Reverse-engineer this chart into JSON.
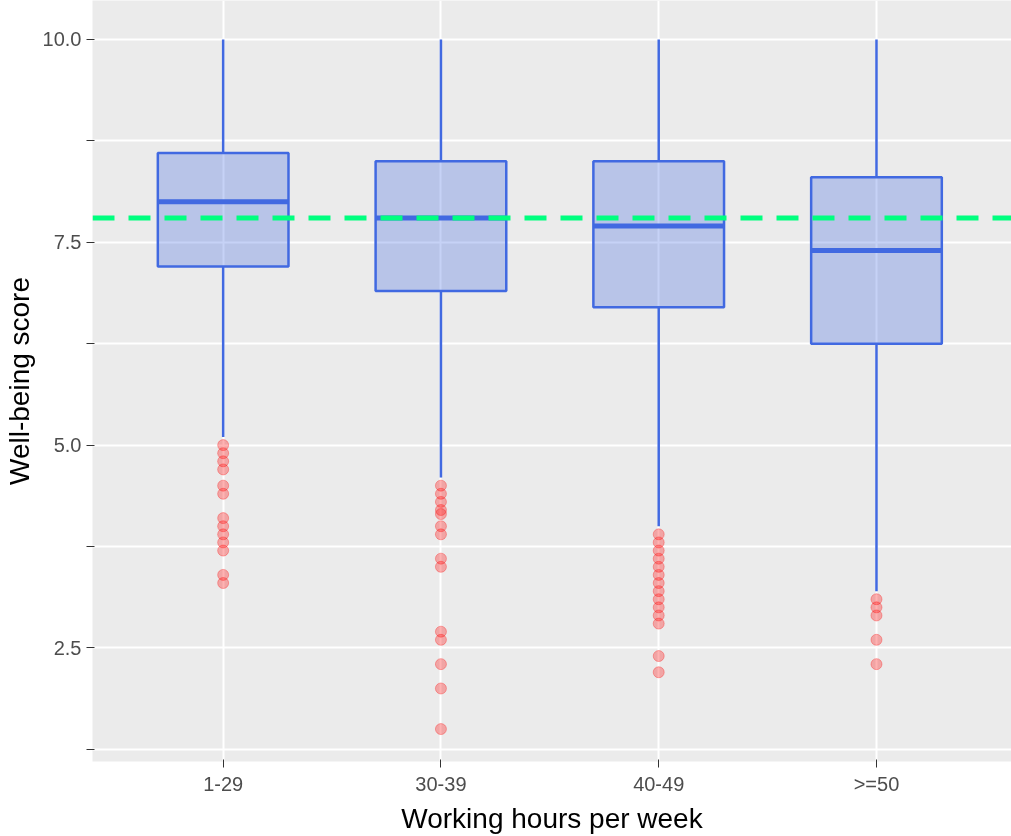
{
  "chart_data": {
    "type": "box",
    "xlabel": "Working hours per week",
    "ylabel": "Well-being score",
    "categories": [
      "1-29",
      "30-39",
      "40-49",
      ">=50"
    ],
    "color": "#4169e1",
    "boxes": [
      {
        "low": 5.1,
        "q1": 7.2,
        "median": 8.0,
        "q3": 8.6,
        "high": 10.0,
        "outliers": [
          5.0,
          4.9,
          4.8,
          4.7,
          4.5,
          4.4,
          4.1,
          4.0,
          3.9,
          3.8,
          3.7,
          3.4,
          3.3
        ]
      },
      {
        "low": 4.6,
        "q1": 6.9,
        "median": 7.8,
        "q3": 8.5,
        "high": 10.0,
        "outliers": [
          4.5,
          4.4,
          4.3,
          4.2,
          4.15,
          4.0,
          3.9,
          3.6,
          3.5,
          2.7,
          2.6,
          2.3,
          2.0,
          1.5
        ]
      },
      {
        "low": 4.0,
        "q1": 6.7,
        "median": 7.7,
        "q3": 8.5,
        "high": 10.0,
        "outliers": [
          3.9,
          3.8,
          3.7,
          3.6,
          3.5,
          3.4,
          3.3,
          3.2,
          3.1,
          3.0,
          2.9,
          2.8,
          2.4,
          2.2
        ]
      },
      {
        "low": 3.2,
        "q1": 6.25,
        "median": 7.4,
        "q3": 8.3,
        "high": 10.0,
        "outliers": [
          3.1,
          3.0,
          2.9,
          2.6,
          2.3
        ]
      }
    ],
    "ylim": [
      1.1,
      10.48
    ],
    "yticks": [
      {
        "value": 1.25,
        "label": null
      },
      2.5,
      {
        "value": 3.75,
        "label": null
      },
      {
        "value": 5,
        "label": "5.0"
      },
      {
        "value": 6.25,
        "label": null
      },
      7.5,
      {
        "value": 8.75,
        "label": null
      },
      {
        "value": 10,
        "label": "10.0"
      }
    ],
    "ref_lines": [
      {
        "axis": "y",
        "value": 7.8,
        "color": "#00ff7f",
        "line_style": "dashed"
      }
    ],
    "grid": true
  }
}
